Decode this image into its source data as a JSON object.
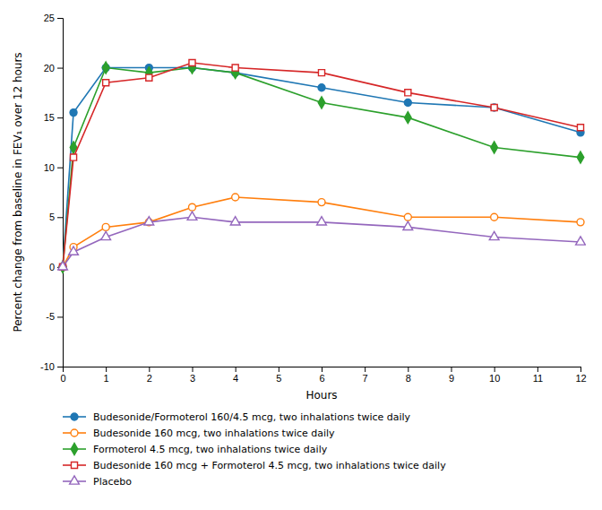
{
  "chart_data": {
    "type": "line",
    "xlabel": "Hours",
    "ylabel": "Percent change from baseline in FEV₁ over 12 hours",
    "x": [
      0,
      0.25,
      1,
      2,
      3,
      4,
      6,
      8,
      10,
      12
    ],
    "xlim": [
      0,
      12
    ],
    "ylim": [
      -10,
      25
    ],
    "xticks": [
      0,
      1,
      2,
      3,
      4,
      5,
      6,
      7,
      8,
      9,
      10,
      11,
      12
    ],
    "yticks": [
      -10,
      -5,
      0,
      5,
      10,
      15,
      20,
      25
    ],
    "grid": false,
    "legend": "bottom",
    "series": [
      {
        "name": "Budesonide/Formoterol 160/4.5 mcg, two inhalations twice daily",
        "marker": "circle-filled",
        "values": [
          0,
          15.5,
          20.0,
          20.0,
          20.0,
          19.5,
          18.0,
          16.5,
          16.0,
          13.5
        ]
      },
      {
        "name": "Budesonide 160 mcg, two inhalations twice daily",
        "marker": "circle-open",
        "values": [
          0,
          2.0,
          4.0,
          4.5,
          6.0,
          7.0,
          6.5,
          5.0,
          5.0,
          4.5
        ]
      },
      {
        "name": "Formoterol 4.5 mcg, two inhalations twice daily",
        "marker": "diamond-filled",
        "values": [
          0,
          12.0,
          20.0,
          19.5,
          20.0,
          19.5,
          16.5,
          15.0,
          12.0,
          11.0
        ]
      },
      {
        "name": "Budesonide 160 mcg + Formoterol 4.5 mcg, two inhalations twice daily",
        "marker": "square-open",
        "values": [
          0,
          11.0,
          18.5,
          19.0,
          20.5,
          20.0,
          19.5,
          17.5,
          16.0,
          14.0
        ]
      },
      {
        "name": "Placebo",
        "marker": "triangle-open",
        "values": [
          0,
          1.5,
          3.0,
          4.5,
          5.0,
          4.5,
          4.5,
          4.0,
          3.0,
          2.5
        ]
      }
    ]
  }
}
